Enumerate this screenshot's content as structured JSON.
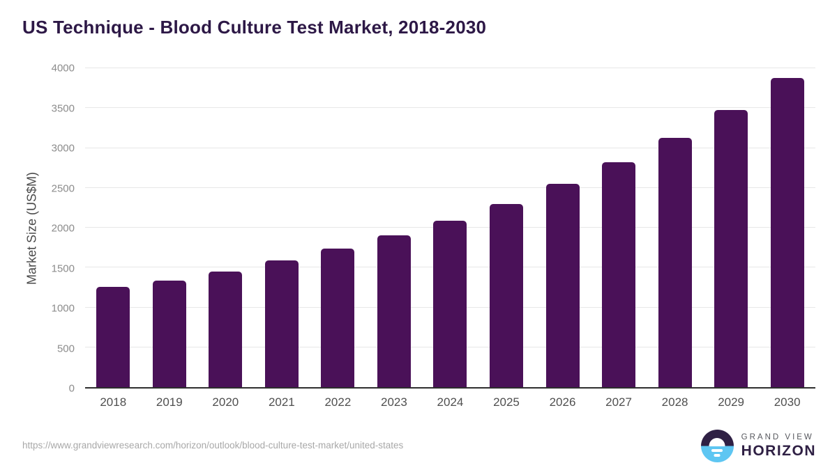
{
  "page": {
    "title": "US Technique - Blood Culture Test Market, 2018-2030"
  },
  "chart_data": {
    "type": "bar",
    "title": "US Technique - Blood Culture Test Market, 2018-2030",
    "categories": [
      "2018",
      "2019",
      "2020",
      "2021",
      "2022",
      "2023",
      "2024",
      "2025",
      "2026",
      "2027",
      "2028",
      "2029",
      "2030"
    ],
    "values": [
      1260,
      1340,
      1450,
      1590,
      1740,
      1900,
      2090,
      2300,
      2550,
      2820,
      3130,
      3480,
      3880
    ],
    "xlabel": "",
    "ylabel": "Market Size (US$M)",
    "ylim": [
      0,
      4000
    ],
    "yticks": [
      0,
      500,
      1000,
      1500,
      2000,
      2500,
      3000,
      3500,
      4000
    ],
    "grid": "horizontal",
    "legend": "none",
    "bar_color": "#4a1158"
  },
  "footer": {
    "source_url": "https://www.grandviewresearch.com/horizon/outlook/blood-culture-test-market/united-states",
    "logo": {
      "top_text": "GRAND VIEW",
      "bottom_text": "HORIZON",
      "icon": "sun-over-horizon-icon"
    }
  },
  "colors": {
    "title": "#2d1846",
    "bar": "#4a1158",
    "gridline": "#e7e7e7",
    "axis_line": "#2e2e2e",
    "y_tick_label": "#8c8c8c",
    "x_tick_label": "#4f4f4f",
    "y_axis_title": "#4a4a4a",
    "source_url": "#a8a8a8",
    "logo_purple": "#2f2044",
    "logo_blue": "#5ec6f2",
    "logo_gray_text": "#55565c"
  }
}
